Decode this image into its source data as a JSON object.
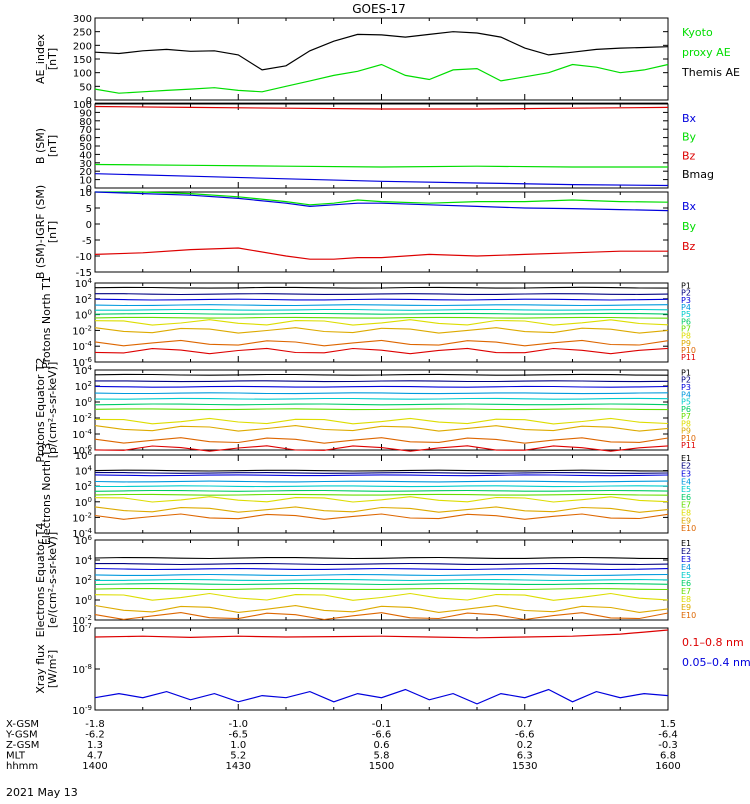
{
  "title": "GOES-17",
  "date_label": "2021 May 13",
  "colors": {
    "black": "#000000",
    "red": "#dd0000",
    "green": "#00dd00",
    "blue": "#0000dd",
    "navy": "#000080",
    "p_colors": [
      "#000000",
      "#000080",
      "#0000dd",
      "#0099dd",
      "#00cccc",
      "#00cc66",
      "#66dd00",
      "#dddd00",
      "#ddaa00",
      "#dd6600",
      "#dd0000"
    ],
    "e_colors": [
      "#000000",
      "#000080",
      "#0000dd",
      "#0099dd",
      "#00cccc",
      "#00cc66",
      "#66dd00",
      "#dddd00",
      "#ddaa00",
      "#dd6600"
    ]
  },
  "orbit_table": {
    "row_labels": [
      "X-GSM",
      "Y-GSM",
      "Z-GSM",
      "MLT",
      "hhmm"
    ],
    "columns": [
      {
        "t": 0,
        "vals": [
          "-1.8",
          "-6.2",
          "1.3",
          "4.7",
          "1400"
        ]
      },
      {
        "t": 30,
        "vals": [
          "-1.0",
          "-6.5",
          "1.0",
          "5.2",
          "1430"
        ]
      },
      {
        "t": 60,
        "vals": [
          "-0.1",
          "-6.6",
          "0.6",
          "5.8",
          "1500"
        ]
      },
      {
        "t": 90,
        "vals": [
          "0.7",
          "-6.6",
          "0.2",
          "6.3",
          "1530"
        ]
      },
      {
        "t": 120,
        "vals": [
          "1.5",
          "-6.4",
          "-0.3",
          "6.8",
          "1600"
        ]
      }
    ]
  },
  "chart_data": [
    {
      "type": "line",
      "ylabel": "AE_index [nT]",
      "ylim": [
        0,
        300
      ],
      "yticks": [
        "0",
        "50",
        "100",
        "150",
        "200",
        "250",
        "300"
      ],
      "legend": [
        {
          "text": "Kyoto",
          "color": "green"
        },
        {
          "text": "proxy AE",
          "color": "green"
        },
        {
          "text": "Themis AE",
          "color": "black"
        }
      ],
      "series": [
        {
          "color": "black",
          "x": [
            0,
            5,
            10,
            15,
            20,
            25,
            30,
            35,
            40,
            45,
            50,
            55,
            60,
            65,
            70,
            75,
            80,
            85,
            90,
            95,
            100,
            105,
            110,
            115,
            120
          ],
          "values": [
            175,
            170,
            180,
            185,
            178,
            180,
            165,
            110,
            125,
            180,
            215,
            240,
            238,
            230,
            240,
            250,
            245,
            230,
            190,
            165,
            175,
            185,
            190,
            192,
            195
          ]
        },
        {
          "color": "green",
          "x": [
            0,
            5,
            10,
            15,
            20,
            25,
            30,
            35,
            40,
            45,
            50,
            55,
            60,
            65,
            70,
            75,
            80,
            85,
            90,
            95,
            100,
            105,
            110,
            115,
            120
          ],
          "values": [
            40,
            25,
            30,
            35,
            40,
            45,
            35,
            30,
            50,
            70,
            90,
            105,
            130,
            90,
            75,
            110,
            115,
            70,
            85,
            100,
            130,
            120,
            100,
            110,
            130
          ]
        }
      ]
    },
    {
      "type": "line",
      "ylabel": "B (SM) [nT]",
      "ylim": [
        0,
        100
      ],
      "yticks": [
        "0",
        "10",
        "20",
        "30",
        "40",
        "50",
        "60",
        "70",
        "80",
        "90",
        "100"
      ],
      "legend": [
        {
          "text": "Bx",
          "color": "blue"
        },
        {
          "text": "By",
          "color": "green"
        },
        {
          "text": "Bz",
          "color": "red"
        },
        {
          "text": "Bmag",
          "color": "black"
        }
      ],
      "series": [
        {
          "color": "black",
          "x": [
            0,
            120
          ],
          "values": [
            101,
            101
          ]
        },
        {
          "color": "red",
          "x": [
            0,
            20,
            40,
            60,
            80,
            100,
            120
          ],
          "values": [
            97,
            96,
            95,
            94,
            94,
            95,
            96
          ]
        },
        {
          "color": "green",
          "x": [
            0,
            20,
            40,
            60,
            80,
            100,
            120
          ],
          "values": [
            28,
            27,
            26,
            25,
            26,
            25,
            25
          ]
        },
        {
          "color": "blue",
          "x": [
            0,
            20,
            40,
            60,
            80,
            100,
            120
          ],
          "values": [
            17,
            14,
            11,
            8,
            6,
            4,
            3
          ]
        }
      ]
    },
    {
      "type": "line",
      "ylabel": "B (SM)-IGRF (SM) [nT]",
      "ylim": [
        -15,
        10
      ],
      "yticks": [
        "-15",
        "-10",
        "-5",
        "0",
        "5",
        "10"
      ],
      "legend": [
        {
          "text": "Bx",
          "color": "blue"
        },
        {
          "text": "By",
          "color": "green"
        },
        {
          "text": "Bz",
          "color": "red"
        }
      ],
      "series": [
        {
          "color": "green",
          "x": [
            0,
            10,
            20,
            30,
            40,
            45,
            50,
            55,
            60,
            70,
            80,
            90,
            100,
            110,
            120
          ],
          "values": [
            10,
            10,
            9.5,
            8.5,
            7,
            6,
            6.5,
            7.5,
            7,
            6.5,
            7,
            7,
            7.5,
            7,
            6.8
          ]
        },
        {
          "color": "blue",
          "x": [
            0,
            10,
            20,
            30,
            40,
            45,
            50,
            55,
            60,
            70,
            80,
            90,
            100,
            110,
            120
          ],
          "values": [
            10,
            9.5,
            9,
            8,
            6.5,
            5.5,
            6,
            6.5,
            6.5,
            6,
            5.5,
            5,
            4.8,
            4.5,
            4.2
          ]
        },
        {
          "color": "red",
          "x": [
            0,
            10,
            20,
            30,
            40,
            45,
            50,
            55,
            60,
            70,
            80,
            90,
            100,
            110,
            120
          ],
          "values": [
            -9.5,
            -9,
            -8,
            -7.5,
            -10,
            -11,
            -11,
            -10.5,
            -10.5,
            -9.5,
            -10,
            -9.5,
            -9,
            -8.5,
            -8.5
          ]
        }
      ]
    },
    {
      "type": "line",
      "ylabel": "Protons North T1",
      "ylog": true,
      "ylim": [
        -6,
        4
      ],
      "yticks": [
        "10^-6",
        "10^-4",
        "10^-2",
        "10^0",
        "10^2",
        "10^4"
      ],
      "legend": [
        "P1",
        "P2",
        "P3",
        "P4",
        "P5",
        "P6",
        "P7",
        "P8",
        "P9",
        "P10",
        "P11"
      ],
      "series_levels": [
        3.4,
        2.6,
        1.9,
        1.2,
        0.6,
        0.1,
        -0.4,
        -1.0,
        -2.0,
        -3.6,
        -4.6
      ]
    },
    {
      "type": "line",
      "ylabel": "Protons Equator T2 [p/(cm²-s-sr-keV)]",
      "ylog": true,
      "ylim": [
        -6,
        4
      ],
      "yticks": [
        "10^-6",
        "10^-4",
        "10^-2",
        "10^0",
        "10^2",
        "10^4"
      ],
      "legend": [
        "P1",
        "P2",
        "P3",
        "P4",
        "P5",
        "P6",
        "P7",
        "P8",
        "P9",
        "P10",
        "P11"
      ],
      "series_levels": [
        3.4,
        2.6,
        1.9,
        1.1,
        0.4,
        -0.3,
        -0.9,
        -2.4,
        -3.3,
        -4.8,
        -5.8
      ]
    },
    {
      "type": "line",
      "ylabel": "Electrons North T3",
      "ylog": true,
      "ylim": [
        -4,
        6
      ],
      "yticks": [
        "10^-4",
        "10^-2",
        "10^0",
        "10^2",
        "10^4",
        "10^6"
      ],
      "legend": [
        "E1",
        "E2",
        "E3",
        "E4",
        "E5",
        "E6",
        "E7",
        "E8",
        "E9",
        "E10"
      ],
      "series_levels": [
        4.0,
        3.7,
        3.4,
        2.6,
        2.0,
        1.4,
        0.9,
        0.3,
        -1.0,
        -1.9
      ]
    },
    {
      "type": "line",
      "ylabel": "Electrons Equator T4 [e/(cm²-s-sr-keV)]",
      "ylog": true,
      "ylim": [
        -2,
        6
      ],
      "yticks": [
        "10^-2",
        "10^0",
        "10^2",
        "10^4",
        "10^6"
      ],
      "legend": [
        "E1",
        "E2",
        "E3",
        "E4",
        "E5",
        "E6",
        "E7",
        "E8",
        "E9",
        "E10"
      ],
      "series_levels": [
        4.2,
        3.6,
        3.1,
        2.5,
        2.0,
        1.6,
        1.1,
        0.3,
        -0.9,
        -1.6
      ]
    },
    {
      "type": "line",
      "ylabel": "Xray flux [W/m²]",
      "ylog": true,
      "ylim": [
        -9,
        -7
      ],
      "yticks": [
        "10^-9",
        "10^-8",
        "10^-7"
      ],
      "legend": [
        {
          "text": "0.1–0.8 nm",
          "color": "red"
        },
        {
          "text": "0.05–0.4 nm",
          "color": "blue"
        }
      ],
      "series": [
        {
          "color": "red",
          "x": [
            0,
            10,
            20,
            30,
            40,
            50,
            60,
            70,
            80,
            90,
            100,
            110,
            115,
            120
          ],
          "values": [
            -7.22,
            -7.2,
            -7.23,
            -7.2,
            -7.22,
            -7.21,
            -7.2,
            -7.22,
            -7.24,
            -7.22,
            -7.2,
            -7.15,
            -7.1,
            -7.05
          ]
        },
        {
          "color": "blue",
          "x": [
            0,
            5,
            10,
            15,
            20,
            25,
            30,
            35,
            40,
            45,
            50,
            55,
            60,
            65,
            70,
            75,
            80,
            85,
            90,
            95,
            100,
            105,
            110,
            115,
            120
          ],
          "values": [
            -8.7,
            -8.6,
            -8.7,
            -8.55,
            -8.75,
            -8.6,
            -8.8,
            -8.65,
            -8.7,
            -8.55,
            -8.8,
            -8.6,
            -8.7,
            -8.5,
            -8.75,
            -8.6,
            -8.85,
            -8.6,
            -8.7,
            -8.5,
            -8.8,
            -8.55,
            -8.7,
            -8.6,
            -8.65
          ]
        }
      ]
    }
  ]
}
